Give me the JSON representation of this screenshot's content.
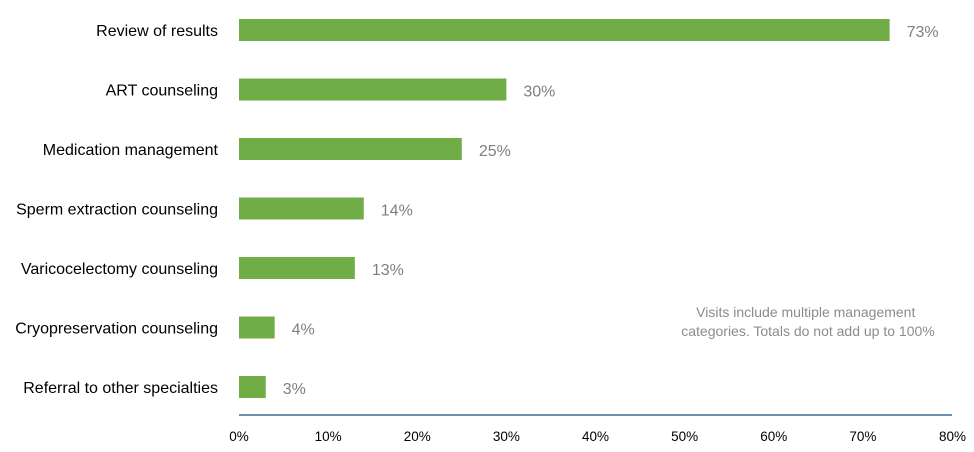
{
  "chart_data": {
    "type": "bar",
    "orientation": "horizontal",
    "categories": [
      "Review of results",
      "ART counseling",
      "Medication management",
      "Sperm extraction counseling",
      "Varicocelectomy counseling",
      "Cryopreservation counseling",
      "Referral to other specialties"
    ],
    "values": [
      73,
      30,
      25,
      14,
      13,
      4,
      3
    ],
    "value_labels": [
      "73%",
      "30%",
      "25%",
      "14%",
      "13%",
      "4%",
      "3%"
    ],
    "title": "",
    "xlabel": "",
    "ylabel": "",
    "xlim": [
      0,
      80
    ],
    "x_ticks": [
      0,
      10,
      20,
      30,
      40,
      50,
      60,
      70,
      80
    ],
    "x_tick_labels": [
      "0%",
      "10%",
      "20%",
      "30%",
      "40%",
      "50%",
      "60%",
      "70%",
      "80%"
    ],
    "grid": false,
    "legend": "none",
    "bar_color": "#70ad47",
    "axis_color": "#1f4e79",
    "value_label_color": "#7f7f7f",
    "note_color": "#8c8c8c",
    "annotation": {
      "lines": [
        "Visits include multiple management",
        "categories. Totals do not add up to 100%"
      ]
    }
  }
}
